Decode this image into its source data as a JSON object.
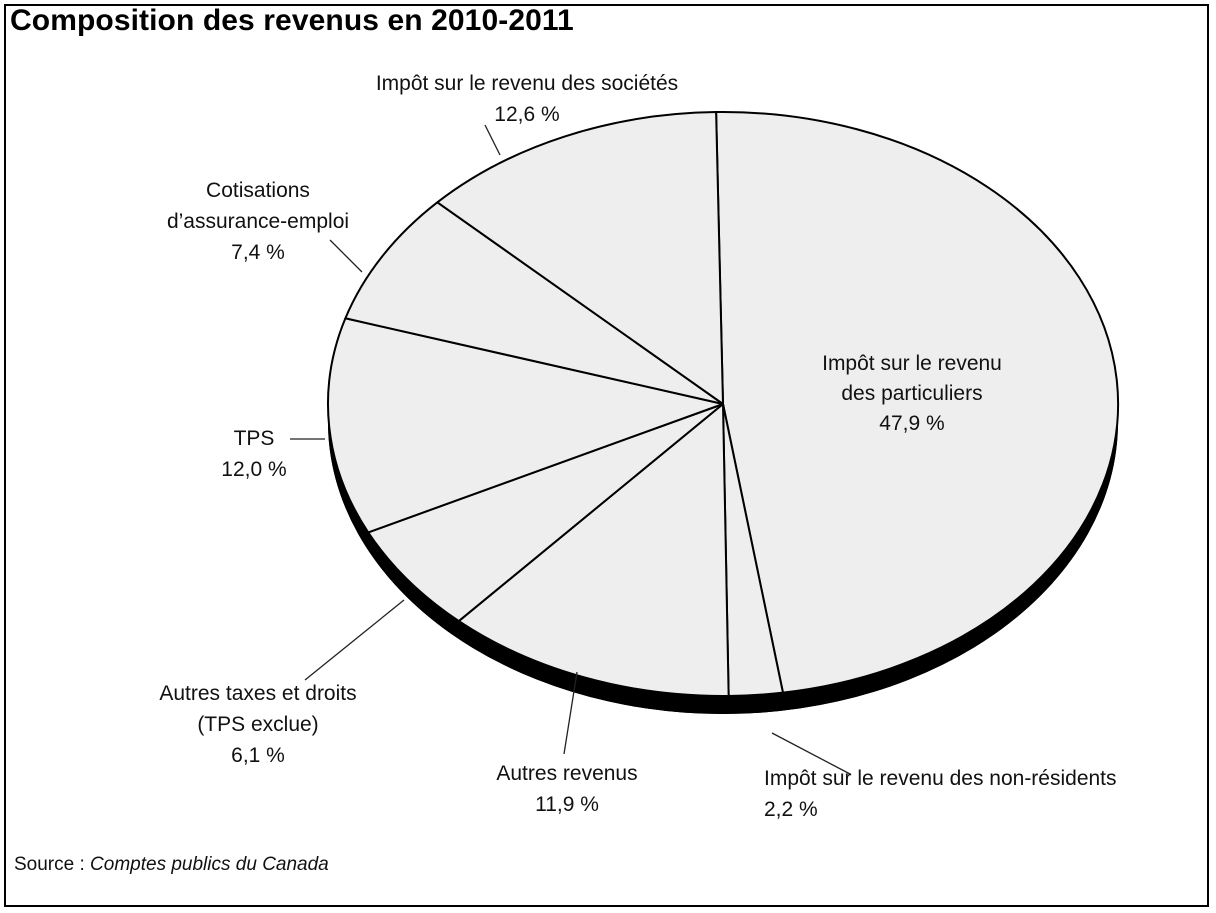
{
  "chart_data": {
    "type": "pie",
    "title": "Composition des revenus en 2010-2011",
    "source_label": "Source : ",
    "source_name": "Comptes publics du Canada",
    "slices": [
      {
        "label": "Impôt sur le revenu des particuliers",
        "label_lines": [
          "Impôt sur le revenu",
          "des particuliers"
        ],
        "value": 47.9,
        "value_text": "47,9 %"
      },
      {
        "label": "Impôt sur le revenu des non-résidents",
        "label_lines": [
          "Impôt sur le revenu des non-résidents"
        ],
        "value": 2.2,
        "value_text": "2,2 %"
      },
      {
        "label": "Autres revenus",
        "label_lines": [
          "Autres revenus"
        ],
        "value": 11.9,
        "value_text": "11,9 %"
      },
      {
        "label": "Autres taxes et droits (TPS exclue)",
        "label_lines": [
          "Autres taxes et droits",
          "(TPS exclue)"
        ],
        "value": 6.1,
        "value_text": "6,1 %"
      },
      {
        "label": "TPS",
        "label_lines": [
          "TPS"
        ],
        "value": 12.0,
        "value_text": "12,0 %"
      },
      {
        "label": "Cotisations d’assurance-emploi",
        "label_lines": [
          "Cotisations",
          "d’assurance-emploi"
        ],
        "value": 7.4,
        "value_text": "7,4 %"
      },
      {
        "label": "Impôt sur le revenu des sociétés",
        "label_lines": [
          "Impôt sur le revenu des sociétés"
        ],
        "value": 12.6,
        "value_text": "12,6 %"
      }
    ],
    "colors": {
      "slice_fill": "#eeeeee",
      "outline": "#000000",
      "depth": "#000000"
    }
  }
}
